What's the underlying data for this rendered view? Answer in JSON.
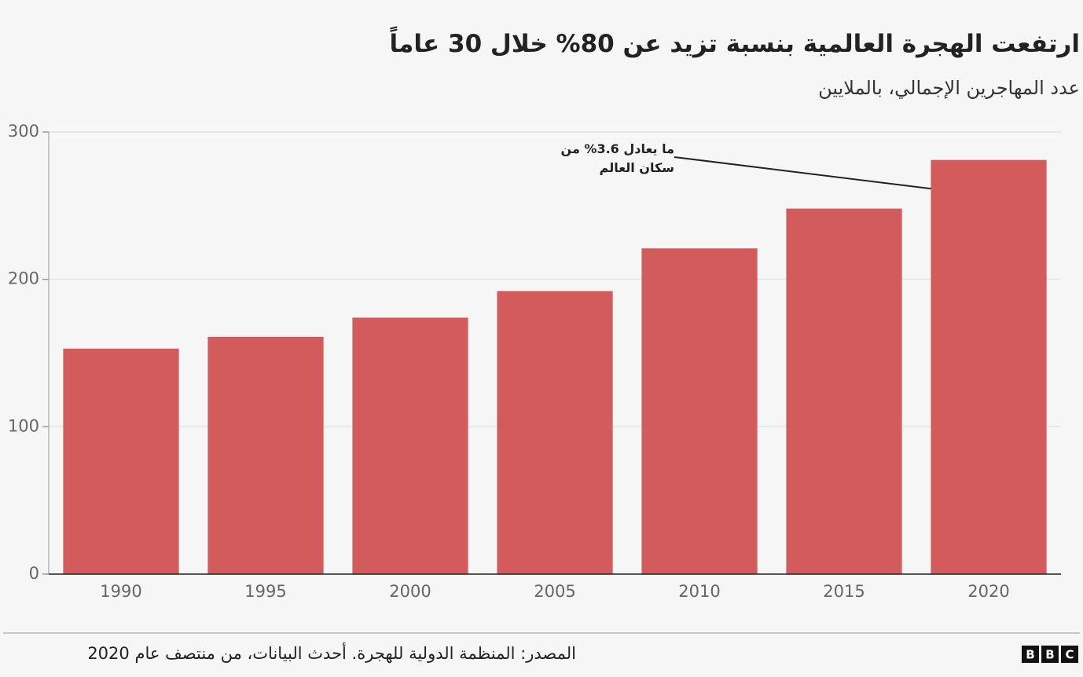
{
  "chart_data": {
    "type": "bar",
    "title": "ارتفعت الهجرة العالمية بنسبة تزيد عن 80% خلال 30 عاماً",
    "subtitle": "عدد المهاجرين الإجمالي، بالملايين",
    "categories": [
      "1990",
      "1995",
      "2000",
      "2005",
      "2010",
      "2015",
      "2020"
    ],
    "values": [
      153,
      161,
      174,
      192,
      221,
      248,
      281
    ],
    "color": "#d45b5b",
    "ylim": [
      0,
      300
    ],
    "yticks": [
      0,
      100,
      200,
      300
    ],
    "grid": true,
    "annotation": [
      "ما يعادل 3.6% من",
      "سكان العالم"
    ],
    "source": "المصدر: المنظمة الدولية للهجرة. أحدث البيانات، من منتصف عام 2020",
    "logo": [
      "B",
      "B",
      "C"
    ]
  }
}
